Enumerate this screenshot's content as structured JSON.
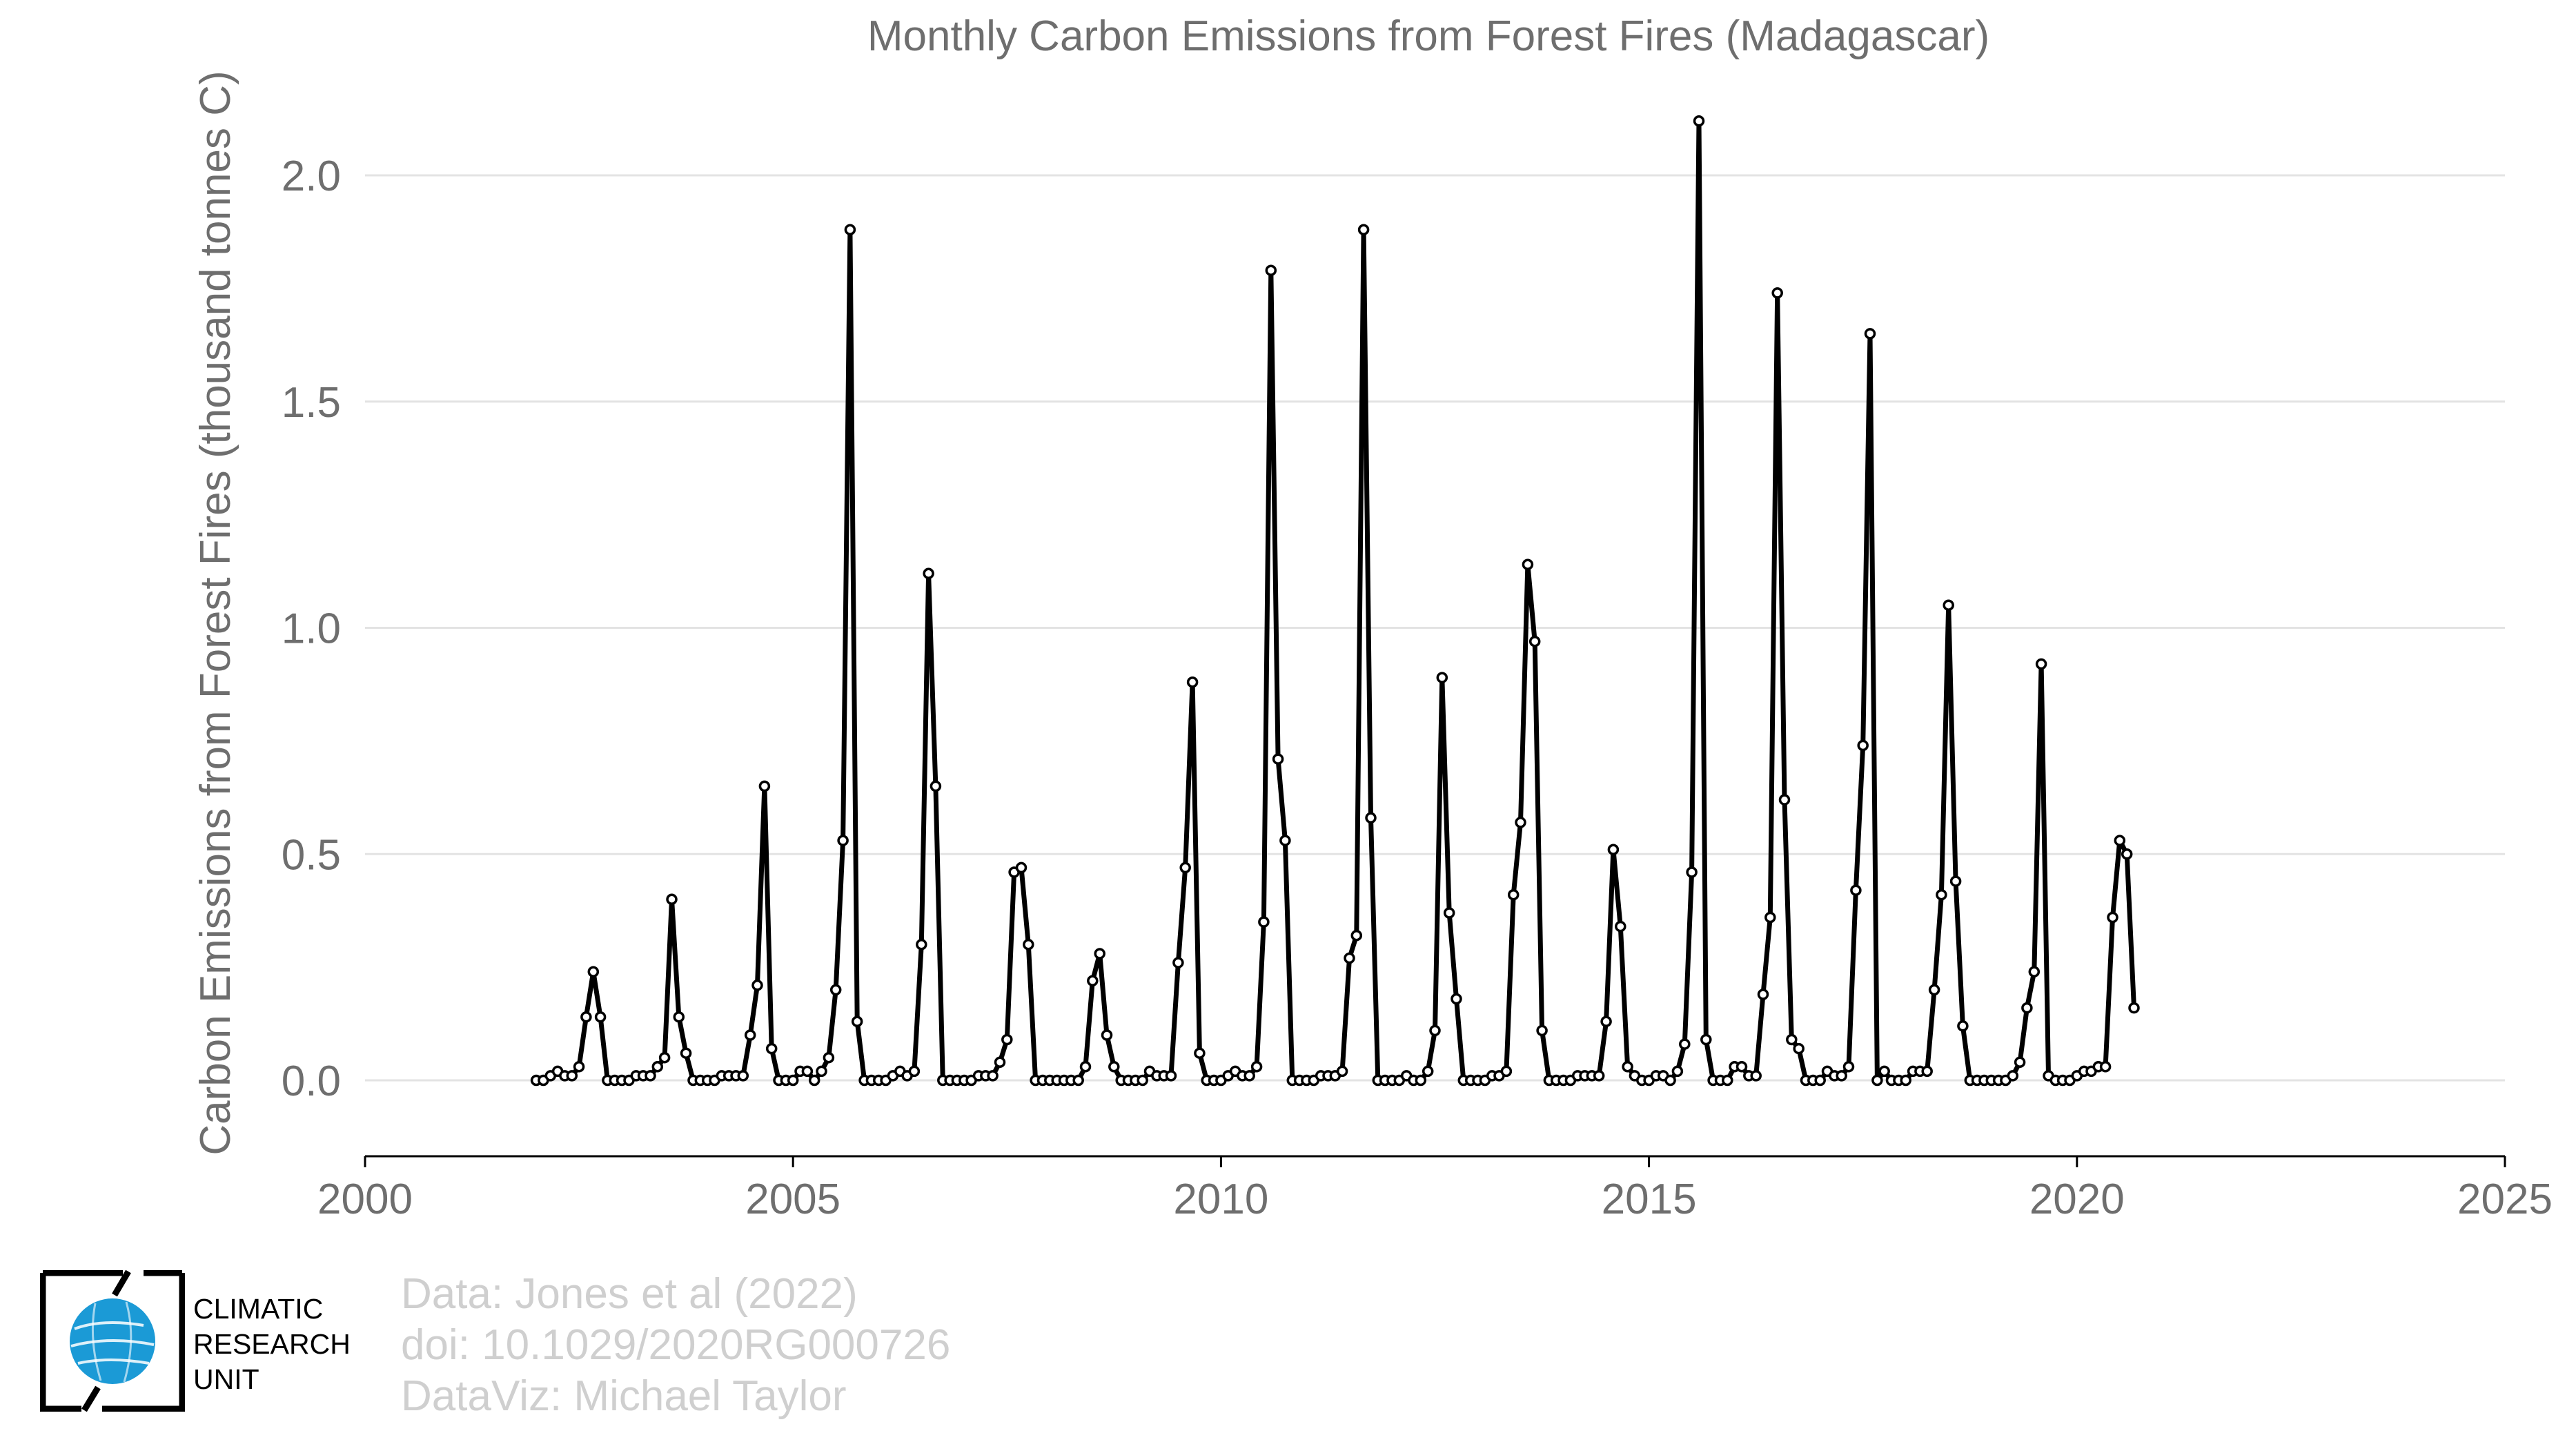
{
  "chart_data": {
    "type": "line",
    "title": "Monthly Carbon Emissions from Forest Fires (Madagascar)",
    "xlabel": "",
    "ylabel": "Carbon Emissions from Forest Fires (thousand tonnes C)",
    "xlim": [
      2000,
      2025
    ],
    "ylim": [
      -0.17,
      2.2
    ],
    "x_ticks": [
      "2000",
      "2005",
      "2010",
      "2015",
      "2020",
      "2025"
    ],
    "y_ticks": [
      "0.0",
      "0.5",
      "1.0",
      "1.5",
      "2.0"
    ],
    "grid": "horizontal",
    "legend": "none",
    "series": [
      {
        "x_start": 2002.0,
        "x_step_months": 1,
        "values": [
          0.0,
          0.0,
          0.01,
          0.02,
          0.01,
          0.01,
          0.03,
          0.14,
          0.24,
          0.14,
          0.0,
          0.0,
          0.0,
          0.0,
          0.01,
          0.01,
          0.01,
          0.03,
          0.05,
          0.4,
          0.14,
          0.06,
          0.0,
          0.0,
          0.0,
          0.0,
          0.01,
          0.01,
          0.01,
          0.01,
          0.1,
          0.21,
          0.65,
          0.07,
          0.0,
          0.0,
          0.0,
          0.02,
          0.02,
          0.0,
          0.02,
          0.05,
          0.2,
          0.53,
          1.88,
          0.13,
          0.0,
          0.0,
          0.0,
          0.0,
          0.01,
          0.02,
          0.01,
          0.02,
          0.3,
          1.12,
          0.65,
          0.0,
          0.0,
          0.0,
          0.0,
          0.0,
          0.01,
          0.01,
          0.01,
          0.04,
          0.09,
          0.46,
          0.47,
          0.3,
          0.0,
          0.0,
          0.0,
          0.0,
          0.0,
          0.0,
          0.0,
          0.03,
          0.22,
          0.28,
          0.1,
          0.03,
          0.0,
          0.0,
          0.0,
          0.0,
          0.02,
          0.01,
          0.01,
          0.01,
          0.26,
          0.47,
          0.88,
          0.06,
          0.0,
          0.0,
          0.0,
          0.01,
          0.02,
          0.01,
          0.01,
          0.03,
          0.35,
          1.79,
          0.71,
          0.53,
          0.0,
          0.0,
          0.0,
          0.0,
          0.01,
          0.01,
          0.01,
          0.02,
          0.27,
          0.32,
          1.88,
          0.58,
          0.0,
          0.0,
          0.0,
          0.0,
          0.01,
          0.0,
          0.0,
          0.02,
          0.11,
          0.89,
          0.37,
          0.18,
          0.0,
          0.0,
          0.0,
          0.0,
          0.01,
          0.01,
          0.02,
          0.41,
          0.57,
          1.14,
          0.97,
          0.11,
          0.0,
          0.0,
          0.0,
          0.0,
          0.01,
          0.01,
          0.01,
          0.01,
          0.13,
          0.51,
          0.34,
          0.03,
          0.01,
          0.0,
          0.0,
          0.01,
          0.01,
          0.0,
          0.02,
          0.08,
          0.46,
          2.12,
          0.09,
          0.0,
          0.0,
          0.0,
          0.03,
          0.03,
          0.01,
          0.01,
          0.19,
          0.36,
          1.74,
          0.62,
          0.09,
          0.07,
          0.0,
          0.0,
          0.0,
          0.02,
          0.01,
          0.01,
          0.03,
          0.42,
          0.74,
          1.65,
          0.0,
          0.02,
          0.0,
          0.0,
          0.0,
          0.02,
          0.02,
          0.02,
          0.2,
          0.41,
          1.05,
          0.44,
          0.12,
          0.0,
          0.0,
          0.0,
          0.0,
          0.0,
          0.0,
          0.01,
          0.04,
          0.16,
          0.24,
          0.92,
          0.01,
          0.0,
          0.0,
          0.0,
          0.01,
          0.02,
          0.02,
          0.03,
          0.03,
          0.36,
          0.53,
          0.5,
          0.16
        ]
      }
    ]
  },
  "credits": {
    "line1": "Data: Jones et al (2022)",
    "line2": "doi: 10.1029/2020RG000726",
    "line3": "DataViz: Michael Taylor"
  },
  "logo": {
    "line1": "CLIMATIC",
    "line2": "RESEARCH",
    "line3": "UNIT",
    "accent_color": "#1b9ad6"
  }
}
